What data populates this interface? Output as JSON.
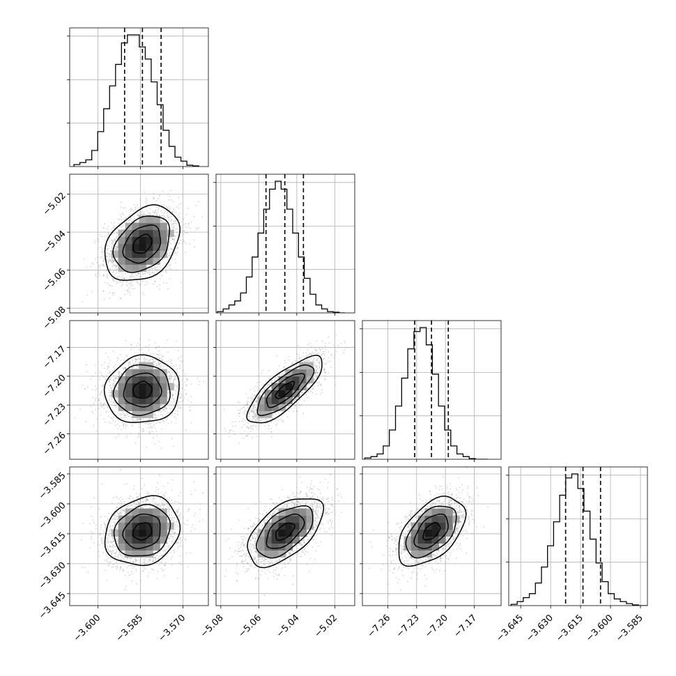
{
  "chart_data": {
    "type": "corner",
    "variables": [
      {
        "ticks": [
          -3.6,
          -3.585,
          -3.57
        ],
        "tick_labels": [
          "−3.600",
          "−3.585",
          "−3.570"
        ],
        "range": [
          -3.61,
          -3.561
        ],
        "quantiles": [
          -3.5906,
          -3.5843,
          -3.5777
        ],
        "hist_edges_start": -3.6085,
        "hist_bin_width": 0.0021,
        "hist": [
          0.015,
          0.03,
          0.05,
          0.12,
          0.26,
          0.43,
          0.6,
          0.76,
          0.92,
          0.98,
          0.98,
          0.89,
          0.8,
          0.63,
          0.46,
          0.27,
          0.15,
          0.07,
          0.04,
          0.01,
          0.005
        ]
      },
      {
        "ticks": [
          -5.08,
          -5.06,
          -5.04,
          -5.02
        ],
        "tick_labels": [
          "−5.08",
          "−5.06",
          "−5.04",
          "−5.02"
        ],
        "range": [
          -5.0825,
          -5.0095
        ],
        "quantiles": [
          -5.0562,
          -5.0463,
          -5.0365
        ],
        "hist_edges_start": -5.0818,
        "hist_bin_width": 0.00305,
        "hist": [
          0.01,
          0.03,
          0.06,
          0.09,
          0.15,
          0.27,
          0.42,
          0.6,
          0.78,
          0.93,
          0.99,
          0.93,
          0.78,
          0.6,
          0.42,
          0.26,
          0.14,
          0.06,
          0.03,
          0.01,
          0.005,
          0.0
        ]
      },
      {
        "ticks": [
          -7.26,
          -7.23,
          -7.2,
          -7.17
        ],
        "tick_labels": [
          "−7.26",
          "−7.23",
          "−7.20",
          "−7.17"
        ],
        "range": [
          -7.2865,
          -7.142
        ],
        "quantiles": [
          -7.232,
          -7.2145,
          -7.197
        ],
        "hist_edges_start": -7.284,
        "hist_bin_width": 0.0064,
        "hist": [
          0.01,
          0.02,
          0.04,
          0.1,
          0.22,
          0.4,
          0.61,
          0.83,
          0.96,
          0.99,
          0.86,
          0.64,
          0.4,
          0.22,
          0.1,
          0.04,
          0.02,
          0.005,
          0.0,
          0.0
        ]
      },
      {
        "ticks": [
          -3.645,
          -3.63,
          -3.615,
          -3.6,
          -3.585
        ],
        "tick_labels": [
          "−3.645",
          "−3.630",
          "−3.615",
          "−3.600",
          "−3.585"
        ],
        "range": [
          -3.651,
          -3.5815
        ],
        "quantiles": [
          -3.6225,
          -3.6138,
          -3.605
        ],
        "hist_edges_start": -3.6498,
        "hist_bin_width": 0.00304,
        "hist": [
          0.01,
          0.03,
          0.06,
          0.09,
          0.17,
          0.29,
          0.45,
          0.63,
          0.83,
          0.96,
          0.99,
          0.88,
          0.71,
          0.5,
          0.32,
          0.18,
          0.09,
          0.05,
          0.03,
          0.015,
          0.005,
          0.0,
          0.0
        ]
      }
    ],
    "pair_stats": [
      {
        "i": 1,
        "j": 0,
        "corr": 0.33,
        "sd_x": 0.0066,
        "sd_y": 0.0099
      },
      {
        "i": 2,
        "j": 0,
        "corr": 0.05,
        "sd_x": 0.0066,
        "sd_y": 0.0175
      },
      {
        "i": 2,
        "j": 1,
        "corr": 0.78,
        "sd_x": 0.0099,
        "sd_y": 0.0175
      },
      {
        "i": 3,
        "j": 0,
        "corr": 0.17,
        "sd_x": 0.0066,
        "sd_y": 0.0086
      },
      {
        "i": 3,
        "j": 1,
        "corr": 0.55,
        "sd_x": 0.0099,
        "sd_y": 0.0086
      },
      {
        "i": 3,
        "j": 2,
        "corr": 0.5,
        "sd_x": 0.0175,
        "sd_y": 0.0086
      }
    ],
    "contour_levels_sigma": [
      0.5,
      1.0,
      1.5,
      2.0
    ],
    "grid": true,
    "colors": {
      "line": "#000000",
      "grid": "#b0b0b0",
      "scatter": "#a0a0a0",
      "density_max": "#000000"
    }
  }
}
